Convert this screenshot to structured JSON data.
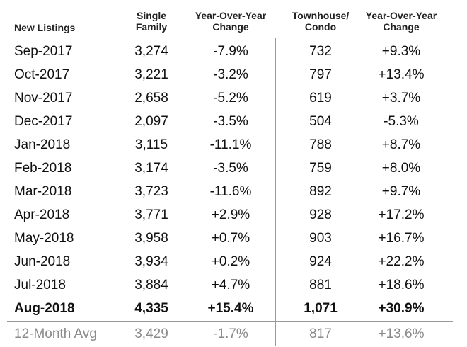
{
  "chart_data": {
    "type": "table",
    "columns": [
      "New Listings",
      "Single Family",
      "Year-Over-Year Change",
      "Townhouse/ Condo",
      "Year-Over-Year Change"
    ],
    "header_lines": [
      [
        "New Listings"
      ],
      [
        "Single",
        "Family"
      ],
      [
        "Year-Over-Year",
        "Change"
      ],
      [
        "Townhouse/",
        "Condo"
      ],
      [
        "Year-Over-Year",
        "Change"
      ]
    ],
    "rows": [
      [
        "Sep-2017",
        "3,274",
        "-7.9%",
        "732",
        "+9.3%"
      ],
      [
        "Oct-2017",
        "3,221",
        "-3.2%",
        "797",
        "+13.4%"
      ],
      [
        "Nov-2017",
        "2,658",
        "-5.2%",
        "619",
        "+3.7%"
      ],
      [
        "Dec-2017",
        "2,097",
        "-3.5%",
        "504",
        "-5.3%"
      ],
      [
        "Jan-2018",
        "3,115",
        "-11.1%",
        "788",
        "+8.7%"
      ],
      [
        "Feb-2018",
        "3,174",
        "-3.5%",
        "759",
        "+8.0%"
      ],
      [
        "Mar-2018",
        "3,723",
        "-11.6%",
        "892",
        "+9.7%"
      ],
      [
        "Apr-2018",
        "3,771",
        "+2.9%",
        "928",
        "+17.2%"
      ],
      [
        "May-2018",
        "3,958",
        "+0.7%",
        "903",
        "+16.7%"
      ],
      [
        "Jun-2018",
        "3,934",
        "+0.2%",
        "924",
        "+22.2%"
      ],
      [
        "Jul-2018",
        "3,884",
        "+4.7%",
        "881",
        "+18.6%"
      ],
      [
        "Aug-2018",
        "4,335",
        "+15.4%",
        "1,071",
        "+30.9%"
      ]
    ],
    "highlight_row": "Aug-2018",
    "summary_row": [
      "12-Month Avg",
      "3,429",
      "-1.7%",
      "817",
      "+13.6%"
    ]
  }
}
